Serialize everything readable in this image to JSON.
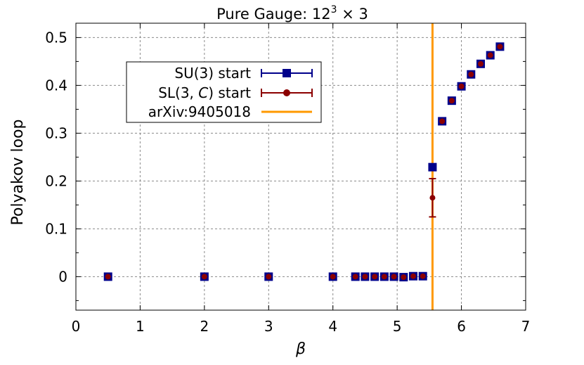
{
  "chart_data": {
    "type": "scatter",
    "title": "Pure Gauge: 12",
    "title_sup": "3",
    "title_tail": " × 3",
    "xlabel": "β",
    "ylabel": "Polyakov loop",
    "xlim": [
      0,
      7
    ],
    "ylim": [
      -0.07,
      0.53
    ],
    "grid": true,
    "legend_placement": "upper-left",
    "x_ticks": [
      0,
      1,
      2,
      3,
      4,
      5,
      6,
      7
    ],
    "y_ticks": [
      0,
      0.1,
      0.2,
      0.3,
      0.4,
      0.5
    ],
    "x_tick_labels": [
      "0",
      "1",
      "2",
      "3",
      "4",
      "5",
      "6",
      "7"
    ],
    "y_tick_labels": [
      "0",
      "0.1",
      "0.2",
      "0.3",
      "0.4",
      "0.5"
    ],
    "series": [
      {
        "name": "SU(3) start",
        "marker": "square",
        "color": "#00008b",
        "x": [
          0.5,
          2.0,
          3.0,
          4.0,
          4.35,
          4.5,
          4.65,
          4.8,
          4.95,
          5.1,
          5.25,
          5.4,
          5.55,
          5.7,
          5.85,
          6.0,
          6.15,
          6.3,
          6.45,
          6.6
        ],
        "y": [
          0,
          0,
          0,
          0,
          0,
          0,
          0,
          0,
          0,
          -0.001,
          0.001,
          0.001,
          0.229,
          0.325,
          0.368,
          0.398,
          0.423,
          0.445,
          0.463,
          0.481
        ]
      },
      {
        "name": "SL(3, C) start",
        "name_parts": [
          "SL(3, ",
          "C",
          ") start"
        ],
        "marker": "circle",
        "color": "#8b0000",
        "x": [
          0.5,
          2.0,
          3.0,
          4.0,
          4.35,
          4.5,
          4.65,
          4.8,
          4.95,
          5.1,
          5.25,
          5.4,
          5.55,
          5.7,
          5.85,
          6.0,
          6.15,
          6.3,
          6.45,
          6.6
        ],
        "y": [
          0,
          0,
          0,
          0,
          0,
          0,
          0,
          0,
          0,
          -0.001,
          0.001,
          0.001,
          0.165,
          0.325,
          0.368,
          0.398,
          0.423,
          0.445,
          0.463,
          0.481
        ],
        "yerr_low": [
          0,
          0,
          0,
          0,
          0,
          0,
          0,
          0,
          0,
          0,
          0,
          0,
          0.04,
          0,
          0,
          0,
          0,
          0,
          0,
          0
        ],
        "yerr_high": [
          0,
          0,
          0,
          0,
          0,
          0,
          0,
          0,
          0,
          0,
          0,
          0,
          0.04,
          0,
          0,
          0,
          0,
          0,
          0,
          0
        ]
      }
    ],
    "reference_lines": [
      {
        "name": "arXiv:9405018",
        "orientation": "vertical",
        "x": 5.55,
        "color": "#ff9900"
      }
    ]
  }
}
